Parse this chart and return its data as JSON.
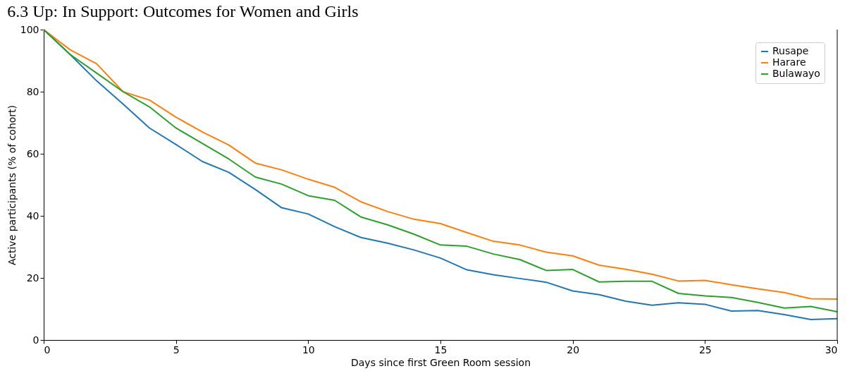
{
  "chart_data": {
    "type": "line",
    "title": "6.3 Up: In Support: Outcomes for Women and Girls",
    "xlabel": "Days since first Green Room session",
    "ylabel": "Active participants (% of cohort)",
    "x": [
      0,
      1,
      2,
      3,
      4,
      5,
      6,
      7,
      8,
      9,
      10,
      11,
      12,
      13,
      14,
      15,
      16,
      17,
      18,
      19,
      20,
      21,
      22,
      23,
      24,
      25,
      26,
      27,
      28,
      29,
      30
    ],
    "series": [
      {
        "name": "Rusape",
        "color": "#1f77b4",
        "values": [
          100,
          92,
          83.5,
          76,
          68.3,
          63,
          57.5,
          54,
          48.5,
          42.6,
          40.6,
          36.5,
          33,
          31.2,
          29,
          26.4,
          22.6,
          21,
          19.8,
          18.6,
          15.8,
          14.6,
          12.5,
          11.2,
          12,
          11.5,
          9.3,
          9.5,
          8.2,
          6.6,
          6.9
        ]
      },
      {
        "name": "Harare",
        "color": "#ff7f0e",
        "values": [
          100,
          93.5,
          89,
          80,
          77.3,
          71.8,
          67,
          62.8,
          57,
          54.8,
          51.8,
          49.2,
          44.5,
          41.4,
          38.9,
          37.5,
          34.6,
          31.8,
          30.6,
          28.3,
          27.1,
          24.1,
          22.8,
          21.2,
          19,
          19.2,
          17.8,
          16.5,
          15.3,
          13.3,
          13.2
        ]
      },
      {
        "name": "Bulawayo",
        "color": "#2ca02c",
        "values": [
          100,
          92,
          86,
          80,
          75.1,
          68.3,
          63.3,
          58.3,
          52.5,
          50.2,
          46.5,
          45,
          39.6,
          37.1,
          34.1,
          30.6,
          30.2,
          27.7,
          25.9,
          22.4,
          22.7,
          18.7,
          18.9,
          18.9,
          15,
          14.2,
          13.7,
          12.1,
          10.3,
          10.8,
          9.1
        ]
      }
    ],
    "xlim": [
      0,
      30
    ],
    "xticks": [
      0,
      5,
      10,
      15,
      20,
      25,
      30
    ],
    "ylim": [
      0,
      100
    ],
    "yticks": [
      0,
      20,
      40,
      60,
      80,
      100
    ],
    "grid": false,
    "legend": "top right",
    "marker": "none",
    "line_style": "solid"
  }
}
